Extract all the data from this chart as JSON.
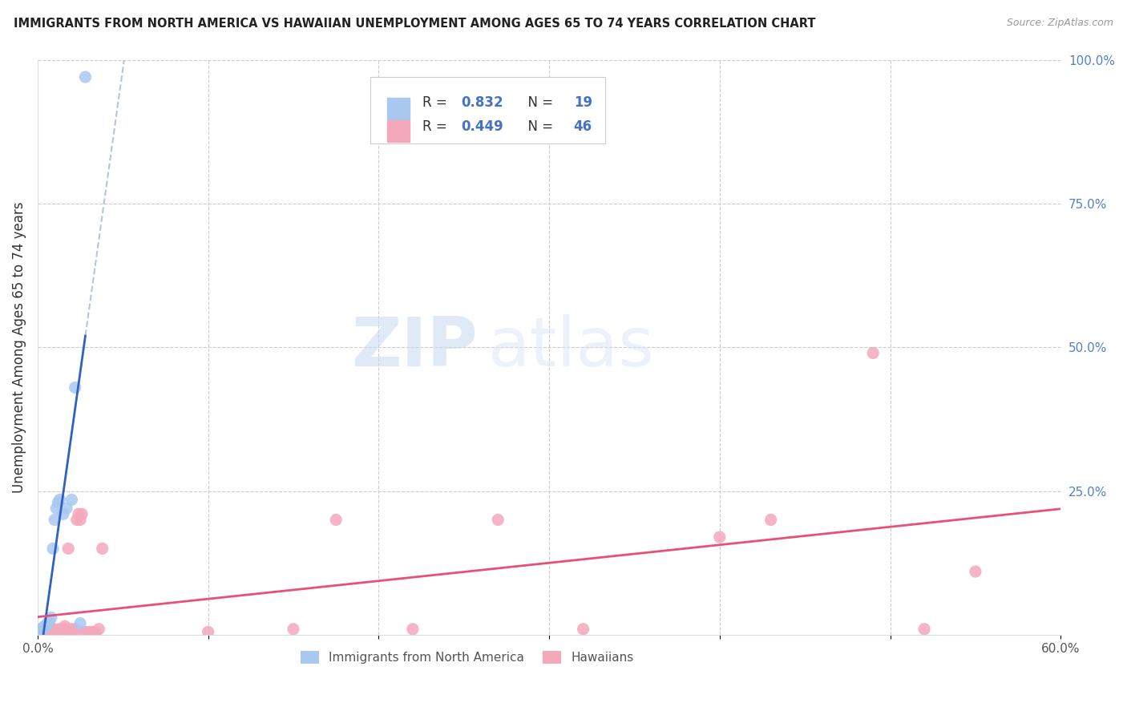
{
  "title": "IMMIGRANTS FROM NORTH AMERICA VS HAWAIIAN UNEMPLOYMENT AMONG AGES 65 TO 74 YEARS CORRELATION CHART",
  "source": "Source: ZipAtlas.com",
  "ylabel": "Unemployment Among Ages 65 to 74 years",
  "xlim": [
    0.0,
    0.6
  ],
  "ylim": [
    0.0,
    1.0
  ],
  "blue_color": "#A8C8F0",
  "pink_color": "#F4A8BC",
  "blue_line_color": "#3060C0",
  "pink_line_color": "#E8507A",
  "dashed_color": "#A0B8D8",
  "legend_R_blue": "0.832",
  "legend_N_blue": "19",
  "legend_R_pink": "0.449",
  "legend_N_pink": "46",
  "legend_label_blue": "Immigrants from North America",
  "legend_label_pink": "Hawaiians",
  "watermark_zip": "ZIP",
  "watermark_atlas": "atlas",
  "blue_scatter_x": [
    0.001,
    0.002,
    0.003,
    0.004,
    0.005,
    0.006,
    0.007,
    0.008,
    0.009,
    0.01,
    0.011,
    0.012,
    0.013,
    0.015,
    0.017,
    0.02,
    0.022,
    0.025,
    0.028
  ],
  "blue_scatter_y": [
    0.005,
    0.01,
    0.01,
    0.015,
    0.015,
    0.02,
    0.025,
    0.03,
    0.15,
    0.2,
    0.22,
    0.23,
    0.235,
    0.21,
    0.22,
    0.235,
    0.43,
    0.02,
    0.97
  ],
  "pink_scatter_x": [
    0.001,
    0.002,
    0.003,
    0.004,
    0.005,
    0.005,
    0.006,
    0.006,
    0.007,
    0.008,
    0.009,
    0.01,
    0.011,
    0.012,
    0.013,
    0.014,
    0.015,
    0.016,
    0.017,
    0.018,
    0.019,
    0.02,
    0.021,
    0.022,
    0.023,
    0.024,
    0.025,
    0.026,
    0.027,
    0.028,
    0.03,
    0.032,
    0.034,
    0.036,
    0.038,
    0.1,
    0.15,
    0.175,
    0.22,
    0.27,
    0.32,
    0.4,
    0.43,
    0.49,
    0.52,
    0.55
  ],
  "pink_scatter_y": [
    0.005,
    0.005,
    0.01,
    0.005,
    0.005,
    0.01,
    0.005,
    0.015,
    0.005,
    0.01,
    0.005,
    0.01,
    0.005,
    0.005,
    0.01,
    0.01,
    0.005,
    0.015,
    0.01,
    0.15,
    0.005,
    0.01,
    0.005,
    0.01,
    0.2,
    0.21,
    0.2,
    0.21,
    0.005,
    0.005,
    0.005,
    0.005,
    0.005,
    0.01,
    0.15,
    0.005,
    0.01,
    0.2,
    0.01,
    0.2,
    0.01,
    0.17,
    0.2,
    0.49,
    0.01,
    0.11
  ]
}
